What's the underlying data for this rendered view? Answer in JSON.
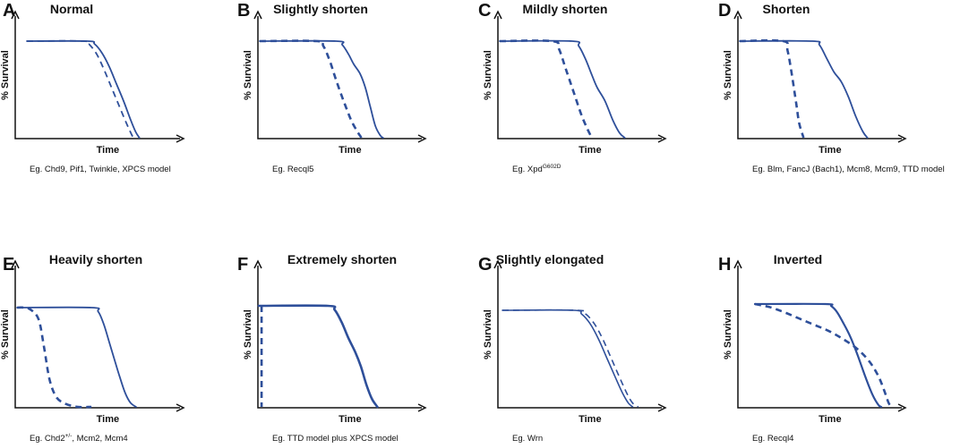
{
  "figure": {
    "axis_labels": {
      "y": "% Survival",
      "x": "Time"
    }
  },
  "chart_data": [
    {
      "type": "line",
      "letter": "A",
      "title": "Normal",
      "xlabel": "Time",
      "ylabel": "% Survival",
      "caption": [
        {
          "t": "Eg. Chd9, Pif1, Twinkle, XPCS model"
        }
      ],
      "series": [
        {
          "name": "solid",
          "style": "solid",
          "stroke": 1.8,
          "points": [
            [
              0,
              100
            ],
            [
              0.5,
              100
            ],
            [
              0.56,
              97
            ],
            [
              0.62,
              88
            ],
            [
              0.68,
              74
            ],
            [
              0.74,
              56
            ],
            [
              0.8,
              38
            ],
            [
              0.86,
              18
            ],
            [
              0.9,
              6
            ],
            [
              0.93,
              0
            ]
          ]
        },
        {
          "name": "dashed",
          "style": "dashed",
          "stroke": 1.8,
          "points": [
            [
              0,
              100
            ],
            [
              0.47,
              100
            ],
            [
              0.52,
              96
            ],
            [
              0.58,
              86
            ],
            [
              0.64,
              70
            ],
            [
              0.7,
              52
            ],
            [
              0.76,
              34
            ],
            [
              0.82,
              16
            ],
            [
              0.86,
              5
            ],
            [
              0.88,
              0
            ]
          ]
        }
      ]
    },
    {
      "type": "line",
      "letter": "B",
      "title": "Slightly shorten",
      "xlabel": "Time",
      "ylabel": "% Survival",
      "caption": [
        {
          "t": "Eg. Recql5"
        }
      ],
      "series": [
        {
          "name": "solid",
          "style": "solid",
          "stroke": 1.8,
          "points": [
            [
              0,
              100
            ],
            [
              0.6,
              100
            ],
            [
              0.65,
              96
            ],
            [
              0.7,
              86
            ],
            [
              0.74,
              76
            ],
            [
              0.79,
              66
            ],
            [
              0.83,
              52
            ],
            [
              0.87,
              32
            ],
            [
              0.91,
              12
            ],
            [
              0.95,
              2
            ],
            [
              0.97,
              0
            ]
          ]
        },
        {
          "name": "dashed",
          "style": "dashed",
          "stroke": 2.6,
          "points": [
            [
              0,
              100
            ],
            [
              0.45,
              100
            ],
            [
              0.5,
              95
            ],
            [
              0.55,
              80
            ],
            [
              0.6,
              60
            ],
            [
              0.66,
              38
            ],
            [
              0.72,
              18
            ],
            [
              0.77,
              6
            ],
            [
              0.8,
              0
            ]
          ]
        }
      ]
    },
    {
      "type": "line",
      "letter": "C",
      "title": "Mildly shorten",
      "xlabel": "Time",
      "ylabel": "% Survival",
      "caption": [
        {
          "t": "Eg. Xpd"
        },
        {
          "t": "G602D",
          "sup": true
        }
      ],
      "series": [
        {
          "name": "solid",
          "style": "solid",
          "stroke": 1.8,
          "points": [
            [
              0,
              100
            ],
            [
              0.55,
              100
            ],
            [
              0.6,
              95
            ],
            [
              0.65,
              82
            ],
            [
              0.7,
              65
            ],
            [
              0.74,
              52
            ],
            [
              0.8,
              38
            ],
            [
              0.86,
              18
            ],
            [
              0.91,
              5
            ],
            [
              0.95,
              0
            ]
          ]
        },
        {
          "name": "dashed",
          "style": "dashed",
          "stroke": 2.6,
          "points": [
            [
              0,
              100
            ],
            [
              0.4,
              100
            ],
            [
              0.45,
              92
            ],
            [
              0.5,
              72
            ],
            [
              0.56,
              48
            ],
            [
              0.62,
              24
            ],
            [
              0.67,
              8
            ],
            [
              0.7,
              0
            ]
          ]
        }
      ]
    },
    {
      "type": "line",
      "letter": "D",
      "title": "Shorten",
      "xlabel": "Time",
      "ylabel": "% Survival",
      "caption": [
        {
          "t": "Eg. Blm, FancJ (Bach1), Mcm8, Mcm9, TTD model"
        }
      ],
      "series": [
        {
          "name": "solid",
          "style": "solid",
          "stroke": 1.8,
          "points": [
            [
              0,
              100
            ],
            [
              0.5,
              100
            ],
            [
              0.55,
              96
            ],
            [
              0.6,
              82
            ],
            [
              0.65,
              68
            ],
            [
              0.7,
              58
            ],
            [
              0.75,
              42
            ],
            [
              0.8,
              22
            ],
            [
              0.85,
              6
            ],
            [
              0.88,
              0
            ]
          ]
        },
        {
          "name": "dashed",
          "style": "dashed",
          "stroke": 2.6,
          "points": [
            [
              0,
              100
            ],
            [
              0.3,
              100
            ],
            [
              0.33,
              90
            ],
            [
              0.36,
              65
            ],
            [
              0.39,
              35
            ],
            [
              0.41,
              15
            ],
            [
              0.44,
              0
            ]
          ]
        }
      ]
    },
    {
      "type": "line",
      "letter": "E",
      "title": "Heavily shorten",
      "xlabel": "Time",
      "ylabel": "% Survival",
      "caption": [
        {
          "t": "Eg. Chd2"
        },
        {
          "t": "+/-",
          "sup": true
        },
        {
          "t": ", Mcm2, Mcm4"
        }
      ],
      "series": [
        {
          "name": "solid",
          "style": "solid",
          "stroke": 1.8,
          "points": [
            [
              0,
              100
            ],
            [
              0.55,
              100
            ],
            [
              0.6,
              96
            ],
            [
              0.64,
              84
            ],
            [
              0.68,
              66
            ],
            [
              0.72,
              48
            ],
            [
              0.76,
              30
            ],
            [
              0.8,
              14
            ],
            [
              0.84,
              4
            ],
            [
              0.88,
              0
            ]
          ]
        },
        {
          "name": "dashed",
          "style": "dashed",
          "stroke": 2.6,
          "points": [
            [
              0,
              100
            ],
            [
              0.05,
              100
            ],
            [
              0.1,
              98
            ],
            [
              0.16,
              88
            ],
            [
              0.2,
              60
            ],
            [
              0.24,
              28
            ],
            [
              0.29,
              10
            ],
            [
              0.36,
              3
            ],
            [
              0.45,
              0
            ],
            [
              0.55,
              0
            ]
          ]
        }
      ]
    },
    {
      "type": "line",
      "letter": "F",
      "title": "Extremely  shorten",
      "xlabel": "Time",
      "ylabel": "% Survival",
      "caption": [
        {
          "t": "Eg. TTD model plus XPCS model"
        }
      ],
      "series": [
        {
          "name": "solid",
          "style": "solid",
          "stroke": 2.6,
          "points": [
            [
              0,
              100
            ],
            [
              0.5,
              100
            ],
            [
              0.55,
              96
            ],
            [
              0.6,
              84
            ],
            [
              0.65,
              68
            ],
            [
              0.7,
              54
            ],
            [
              0.74,
              40
            ],
            [
              0.78,
              22
            ],
            [
              0.82,
              8
            ],
            [
              0.86,
              0
            ]
          ]
        },
        {
          "name": "dashed",
          "style": "dashed",
          "stroke": 2.6,
          "points": [
            [
              0.02,
              100
            ],
            [
              0.02,
              0
            ]
          ]
        }
      ]
    },
    {
      "type": "line",
      "letter": "G",
      "title": "Slightly elongated",
      "xlabel": "Time",
      "ylabel": "% Survival",
      "caption": [
        {
          "t": "Eg. Wrn"
        }
      ],
      "series": [
        {
          "name": "solid",
          "style": "solid",
          "stroke": 1.6,
          "points": [
            [
              0,
              100
            ],
            [
              0.5,
              100
            ],
            [
              0.56,
              96
            ],
            [
              0.62,
              86
            ],
            [
              0.68,
              70
            ],
            [
              0.74,
              50
            ],
            [
              0.8,
              30
            ],
            [
              0.85,
              14
            ],
            [
              0.89,
              4
            ],
            [
              0.92,
              0
            ]
          ]
        },
        {
          "name": "dashed",
          "style": "dashed",
          "stroke": 1.6,
          "points": [
            [
              0,
              100
            ],
            [
              0.53,
              100
            ],
            [
              0.59,
              96
            ],
            [
              0.65,
              86
            ],
            [
              0.71,
              70
            ],
            [
              0.77,
              50
            ],
            [
              0.83,
              30
            ],
            [
              0.88,
              14
            ],
            [
              0.92,
              4
            ],
            [
              0.96,
              0
            ]
          ]
        }
      ]
    },
    {
      "type": "line",
      "letter": "H",
      "title": "Inverted",
      "xlabel": "Time",
      "ylabel": "% Survival",
      "caption": [
        {
          "t": "Eg. Recql4"
        }
      ],
      "series": [
        {
          "name": "solid",
          "style": "solid",
          "stroke": 2.2,
          "points": [
            [
              0,
              100
            ],
            [
              0.48,
              100
            ],
            [
              0.52,
              98
            ],
            [
              0.56,
              92
            ],
            [
              0.6,
              82
            ],
            [
              0.65,
              68
            ],
            [
              0.7,
              50
            ],
            [
              0.75,
              30
            ],
            [
              0.8,
              12
            ],
            [
              0.84,
              2
            ],
            [
              0.86,
              0
            ]
          ]
        },
        {
          "name": "dashed",
          "style": "dashed",
          "stroke": 2.6,
          "points": [
            [
              0,
              100
            ],
            [
              0.1,
              97
            ],
            [
              0.2,
              92
            ],
            [
              0.3,
              86
            ],
            [
              0.4,
              80
            ],
            [
              0.5,
              74
            ],
            [
              0.6,
              66
            ],
            [
              0.7,
              56
            ],
            [
              0.78,
              44
            ],
            [
              0.84,
              30
            ],
            [
              0.88,
              16
            ],
            [
              0.91,
              4
            ],
            [
              0.93,
              0
            ]
          ]
        }
      ]
    }
  ]
}
